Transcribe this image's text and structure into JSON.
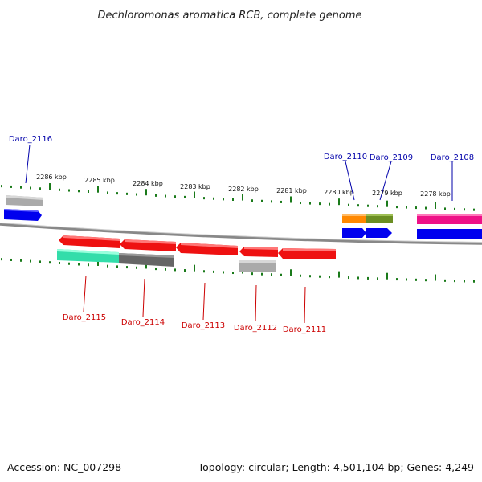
{
  "title": "Dechloromonas aromatica RCB, complete genome",
  "footer": {
    "accession": "Accession: NC_007298",
    "summary": "Topology: circular; Length: 4,501,104 bp; Genes: 4,249"
  },
  "scale": {
    "unit": "kbp",
    "ticks": [
      "2286 kbp",
      "2285 kbp",
      "2284 kbp",
      "2283 kbp",
      "2282 kbp",
      "2281 kbp",
      "2280 kbp",
      "2279 kbp",
      "2278 kbp"
    ]
  },
  "colors": {
    "tick": "#1a7a1a",
    "forward_label": "#0000aa",
    "reverse_label": "#cc0000",
    "red": "#ee1111",
    "blue": "#0000ee",
    "gray": "#9a9a9a",
    "dark_gray": "#666666",
    "teal": "#33ddaa",
    "orange": "#ff8800",
    "olive": "#6b8e23",
    "pink": "#ee1188"
  },
  "genes_forward": [
    {
      "label": "Daro_2116"
    },
    {
      "label": "Daro_2110"
    },
    {
      "label": "Daro_2109"
    },
    {
      "label": "Daro_2108"
    }
  ],
  "genes_reverse": [
    {
      "label": "Daro_2115"
    },
    {
      "label": "Daro_2114"
    },
    {
      "label": "Daro_2113"
    },
    {
      "label": "Daro_2112"
    },
    {
      "label": "Daro_2111"
    }
  ]
}
